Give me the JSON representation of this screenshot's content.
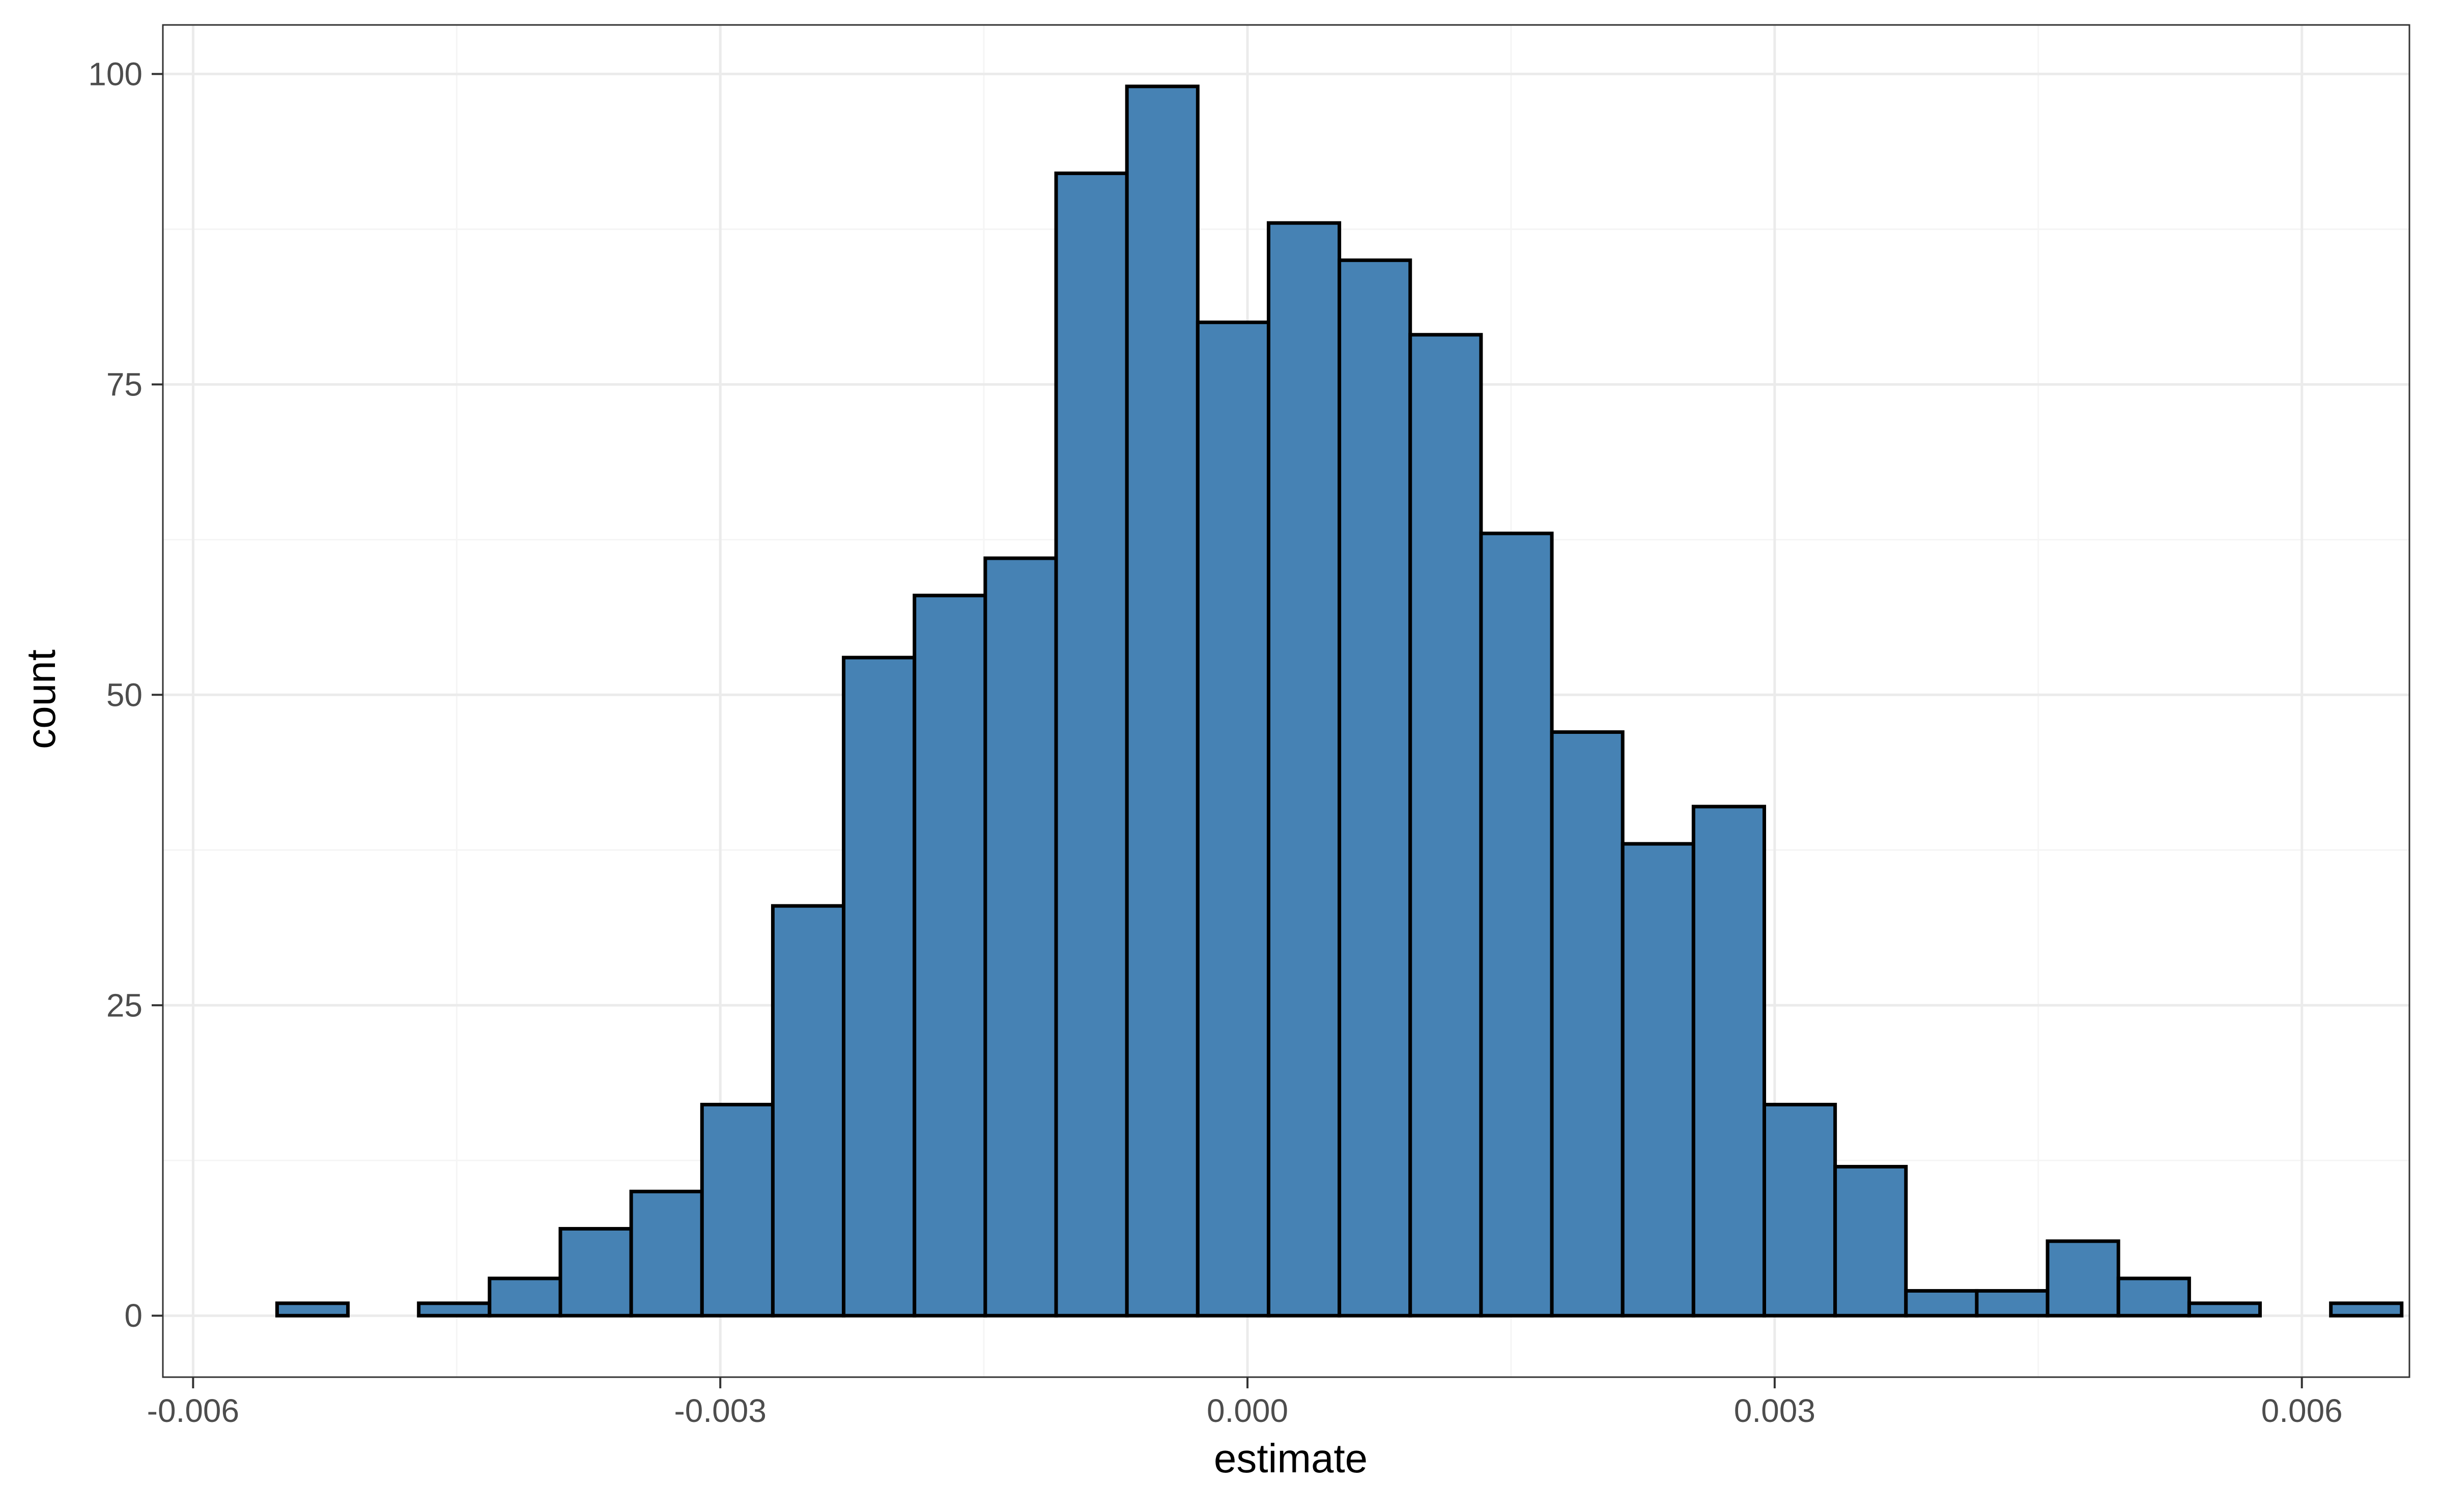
{
  "chart_data": {
    "type": "bar",
    "xlabel": "estimate",
    "ylabel": "count",
    "x_ticks": [
      {
        "value": -0.006,
        "label": "-0.006"
      },
      {
        "value": -0.003,
        "label": "-0.003"
      },
      {
        "value": 0.0,
        "label": "0.000"
      },
      {
        "value": 0.003,
        "label": "0.003"
      },
      {
        "value": 0.006,
        "label": "0.006"
      }
    ],
    "y_ticks": [
      {
        "value": 0,
        "label": "0"
      },
      {
        "value": 25,
        "label": "25"
      },
      {
        "value": 50,
        "label": "50"
      },
      {
        "value": 75,
        "label": "75"
      },
      {
        "value": 100,
        "label": "100"
      }
    ],
    "xlim": [
      -0.006172,
      0.006612
    ],
    "ylim": [
      -4.95,
      103.95
    ],
    "bin_width": 0.000403,
    "bin_start": -0.005522,
    "values": [
      1,
      0,
      1,
      3,
      7,
      10,
      17,
      33,
      53,
      58,
      61,
      92,
      99,
      80,
      88,
      85,
      79,
      63,
      47,
      38,
      41,
      17,
      12,
      2,
      2,
      6,
      3,
      1,
      0,
      1
    ],
    "grid": true,
    "legend": "none",
    "colors": {
      "bar_fill": "#4682b4",
      "bar_stroke": "#000000",
      "panel_border": "#333333",
      "grid_major": "#ebebeb",
      "grid_minor": "#f5f5f5",
      "tick_text": "#4d4d4d",
      "axis_title": "#000000"
    }
  }
}
